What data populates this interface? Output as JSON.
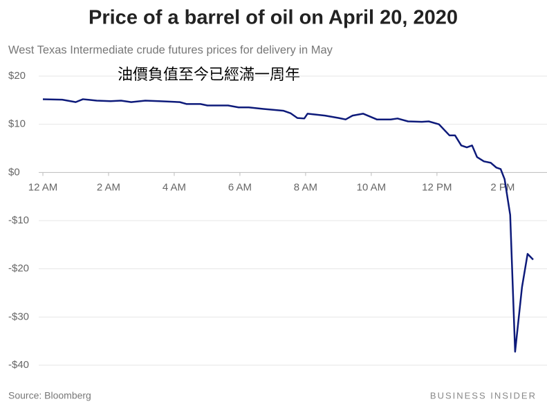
{
  "chart_data": {
    "type": "line",
    "title": "Price of a barrel of oil on April 20, 2020",
    "subtitle": "West Texas Intermediate crude futures prices for delivery in May",
    "annotation": "油價負值至今已經滿一周年",
    "source": "Source: Bloomberg",
    "brand": "BUSINESS INSIDER",
    "x": [
      0,
      0.59,
      1.0,
      1.22,
      1.64,
      2.06,
      2.38,
      2.69,
      3.12,
      3.54,
      4.17,
      4.38,
      4.8,
      5.01,
      5.64,
      5.96,
      6.27,
      6.69,
      7.33,
      7.54,
      7.75,
      7.96,
      8.06,
      8.59,
      9.01,
      9.22,
      9.43,
      9.75,
      10.17,
      10.59,
      10.8,
      11.12,
      11.54,
      11.75,
      12.06,
      12.38,
      12.55,
      12.74,
      12.91,
      13.07,
      13.22,
      13.43,
      13.64,
      13.81,
      13.94,
      14.06,
      14.23,
      14.38,
      14.59,
      14.76,
      14.93
    ],
    "series": [
      {
        "name": "WTI May futures",
        "color": "#0d1a7a",
        "values": [
          15.2,
          15.1,
          14.6,
          15.2,
          14.9,
          14.8,
          14.9,
          14.6,
          14.9,
          14.8,
          14.6,
          14.2,
          14.2,
          13.9,
          13.9,
          13.5,
          13.5,
          13.2,
          12.8,
          12.3,
          11.3,
          11.2,
          12.2,
          11.8,
          11.3,
          11.0,
          11.8,
          12.2,
          11.0,
          11.0,
          11.2,
          10.6,
          10.5,
          10.6,
          10.0,
          7.7,
          7.7,
          5.6,
          5.2,
          5.6,
          3.2,
          2.3,
          2.0,
          1.0,
          0.7,
          -1.4,
          -8.8,
          -37.2,
          -23.8,
          -16.9,
          -18.1
        ]
      }
    ],
    "xlim": [
      0,
      14.93
    ],
    "xticks": [
      {
        "value": 0,
        "label": "12 AM"
      },
      {
        "value": 2,
        "label": "2 AM"
      },
      {
        "value": 4,
        "label": "4 AM"
      },
      {
        "value": 6,
        "label": "6 AM"
      },
      {
        "value": 8,
        "label": "8 AM"
      },
      {
        "value": 10,
        "label": "10 AM"
      },
      {
        "value": 12,
        "label": "12 PM"
      },
      {
        "value": 14,
        "label": "2 PM"
      }
    ],
    "ylim": [
      -40,
      20
    ],
    "yticks": [
      {
        "value": 20,
        "label": "$20"
      },
      {
        "value": 10,
        "label": "$10"
      },
      {
        "value": 0,
        "label": "$0"
      },
      {
        "value": -10,
        "label": "-$10"
      },
      {
        "value": -20,
        "label": "-$20"
      },
      {
        "value": -30,
        "label": "-$30"
      },
      {
        "value": -40,
        "label": "-$40"
      }
    ],
    "grid": true
  }
}
